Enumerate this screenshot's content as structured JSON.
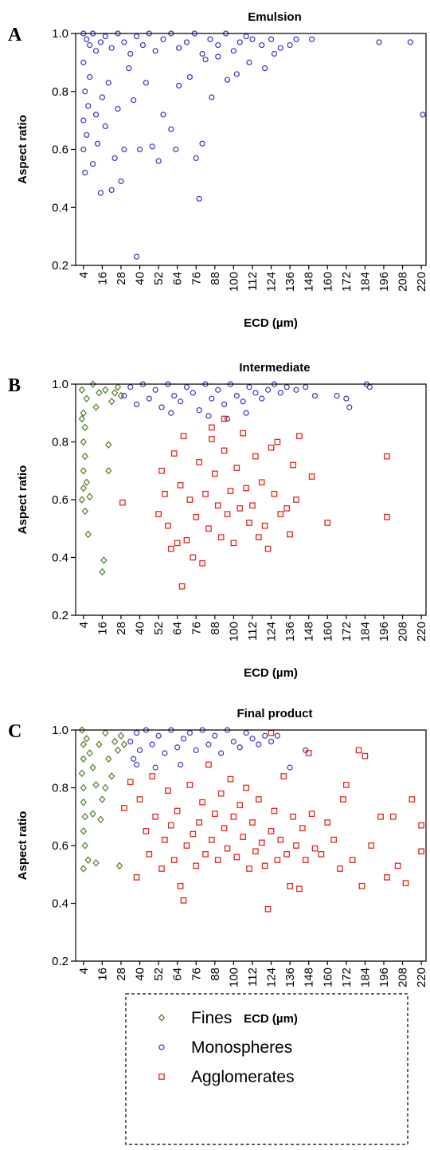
{
  "chart_data": [
    {
      "type": "scatter",
      "panel_label": "A",
      "title": "Emulsion",
      "x_label": "ECD (µm)",
      "y_label": "Aspect ratio",
      "xlim": [
        -1,
        223
      ],
      "ylim": [
        0.2,
        1.0
      ],
      "xticks": [
        4,
        16,
        28,
        40,
        52,
        64,
        76,
        88,
        100,
        112,
        124,
        136,
        148,
        160,
        172,
        184,
        196,
        208,
        220
      ],
      "yticks": [
        0.2,
        0.4,
        0.6,
        0.8,
        {
          "value": 1,
          "label": "1.0"
        }
      ],
      "series": [
        {
          "name": "Monospheres",
          "color": "#3333c4",
          "marker": "circle",
          "x": [
            4,
            6,
            8,
            10,
            12,
            15,
            18,
            22,
            26,
            30,
            34,
            38,
            42,
            46,
            50,
            55,
            60,
            65,
            70,
            75,
            80,
            85,
            90,
            95,
            100,
            104,
            108,
            112,
            118,
            124,
            130,
            136,
            140,
            150,
            193,
            213,
            221,
            4,
            4,
            5,
            4,
            5,
            6,
            7,
            8,
            10,
            12,
            13,
            15,
            16,
            18,
            20,
            22,
            24,
            26,
            28,
            30,
            33,
            36,
            38,
            40,
            44,
            48,
            52,
            55,
            60,
            63,
            65,
            72,
            76,
            78,
            80,
            82,
            86,
            90,
            96,
            102,
            110,
            120,
            126
          ],
          "values": [
            1.0,
            0.98,
            0.96,
            1.0,
            0.94,
            0.97,
            0.99,
            0.95,
            1.0,
            0.97,
            0.93,
            0.99,
            0.96,
            1.0,
            0.94,
            0.98,
            1.0,
            0.95,
            0.97,
            1.0,
            0.93,
            0.98,
            0.96,
            1.0,
            0.94,
            0.97,
            0.99,
            0.98,
            0.96,
            0.98,
            0.95,
            0.96,
            0.98,
            0.98,
            0.97,
            0.97,
            0.72,
            0.6,
            0.7,
            0.8,
            0.9,
            0.52,
            0.65,
            0.75,
            0.85,
            0.55,
            0.72,
            0.62,
            0.45,
            0.78,
            0.68,
            0.83,
            0.46,
            0.57,
            0.74,
            0.49,
            0.6,
            0.88,
            0.77,
            0.23,
            0.6,
            0.83,
            0.61,
            0.56,
            0.72,
            0.67,
            0.6,
            0.82,
            0.85,
            0.57,
            0.43,
            0.62,
            0.91,
            0.78,
            0.92,
            0.84,
            0.86,
            0.9,
            0.88,
            0.93
          ]
        }
      ]
    },
    {
      "type": "scatter",
      "panel_label": "B",
      "title": "Intermediate",
      "x_label": "ECD (µm)",
      "y_label": "Aspect ratio",
      "xlim": [
        -1,
        223
      ],
      "ylim": [
        0.2,
        1.0
      ],
      "xticks": [
        4,
        16,
        28,
        40,
        52,
        64,
        76,
        88,
        100,
        112,
        124,
        136,
        148,
        160,
        172,
        184,
        196,
        208,
        220
      ],
      "yticks": [
        0.2,
        0.4,
        0.6,
        0.8,
        {
          "value": 1,
          "label": "1.0"
        }
      ],
      "series": [
        {
          "name": "Fines",
          "color": "#4f7f2f",
          "marker": "diamond",
          "x": [
            3,
            4,
            4,
            4,
            3,
            5,
            5,
            6,
            6,
            7,
            8,
            10,
            12,
            14,
            16,
            17,
            18,
            20,
            20,
            22,
            24,
            26,
            28,
            4,
            5,
            3
          ],
          "values": [
            0.98,
            0.9,
            0.8,
            0.7,
            0.6,
            0.85,
            0.75,
            0.95,
            0.66,
            0.48,
            0.61,
            1.0,
            0.92,
            0.97,
            0.35,
            0.39,
            0.98,
            0.79,
            0.7,
            0.94,
            0.97,
            0.99,
            0.96,
            0.64,
            0.56,
            0.88
          ]
        },
        {
          "name": "Monospheres",
          "color": "#3333c4",
          "marker": "circle",
          "x": [
            30,
            34,
            38,
            42,
            46,
            50,
            54,
            58,
            62,
            66,
            70,
            74,
            78,
            82,
            86,
            90,
            94,
            98,
            102,
            106,
            110,
            114,
            118,
            122,
            126,
            130,
            134,
            140,
            146,
            152,
            166,
            172,
            174,
            185,
            187,
            60,
            84,
            96,
            108
          ],
          "values": [
            0.96,
            0.99,
            0.93,
            1.0,
            0.95,
            0.98,
            0.92,
            1.0,
            0.96,
            0.94,
            0.99,
            0.97,
            0.91,
            1.0,
            0.95,
            0.98,
            0.93,
            1.0,
            0.96,
            0.94,
            0.99,
            0.97,
            0.95,
            0.98,
            1.0,
            0.97,
            0.99,
            0.98,
            0.99,
            0.96,
            0.96,
            0.95,
            0.92,
            1.0,
            0.99,
            0.9,
            0.89,
            0.88,
            0.9
          ]
        },
        {
          "name": "Agglomerates",
          "color": "#dd2a22",
          "marker": "square",
          "x": [
            29,
            52,
            54,
            56,
            58,
            60,
            62,
            64,
            66,
            67,
            68,
            70,
            72,
            74,
            76,
            78,
            80,
            82,
            84,
            86,
            88,
            90,
            92,
            94,
            96,
            98,
            100,
            102,
            104,
            106,
            108,
            110,
            112,
            114,
            116,
            118,
            120,
            122,
            124,
            126,
            128,
            130,
            134,
            136,
            138,
            140,
            142,
            150,
            160,
            198,
            198,
            86,
            94
          ],
          "values": [
            0.59,
            0.55,
            0.7,
            0.62,
            0.51,
            0.43,
            0.76,
            0.45,
            0.65,
            0.3,
            0.82,
            0.46,
            0.6,
            0.4,
            0.54,
            0.73,
            0.38,
            0.62,
            0.5,
            0.81,
            0.69,
            0.58,
            0.47,
            0.77,
            0.55,
            0.63,
            0.45,
            0.71,
            0.57,
            0.83,
            0.64,
            0.52,
            0.58,
            0.75,
            0.47,
            0.66,
            0.51,
            0.43,
            0.78,
            0.62,
            0.8,
            0.55,
            0.57,
            0.48,
            0.72,
            0.6,
            0.82,
            0.68,
            0.52,
            0.75,
            0.54,
            0.85,
            0.88
          ]
        }
      ]
    },
    {
      "type": "scatter",
      "panel_label": "C",
      "title": "Final product",
      "x_label": "ECD (µm)",
      "y_label": "Aspect ratio",
      "xlim": [
        -1,
        223
      ],
      "ylim": [
        0.2,
        1.0
      ],
      "xticks": [
        4,
        16,
        28,
        40,
        52,
        64,
        76,
        88,
        100,
        112,
        124,
        136,
        148,
        160,
        172,
        184,
        196,
        208,
        220
      ],
      "yticks": [
        0.2,
        0.4,
        0.6,
        0.8,
        {
          "value": 1,
          "label": "1.0"
        }
      ],
      "series": [
        {
          "name": "Fines",
          "color": "#4f7f2f",
          "marker": "diamond",
          "x": [
            3,
            4,
            4,
            3,
            4,
            4,
            5,
            4,
            5,
            4,
            6,
            7,
            8,
            10,
            12,
            12,
            14,
            15,
            16,
            18,
            20,
            22,
            24,
            26,
            27,
            28,
            30,
            10,
            18
          ],
          "values": [
            1.0,
            0.95,
            0.9,
            0.85,
            0.8,
            0.75,
            0.7,
            0.65,
            0.6,
            0.52,
            0.97,
            0.55,
            0.92,
            0.87,
            0.81,
            0.54,
            0.95,
            0.69,
            0.76,
            0.99,
            0.9,
            0.84,
            0.96,
            0.93,
            0.53,
            0.98,
            0.95,
            0.71,
            0.8
          ]
        },
        {
          "name": "Monospheres",
          "color": "#3333c4",
          "marker": "circle",
          "x": [
            34,
            36,
            38,
            40,
            44,
            48,
            52,
            56,
            60,
            64,
            68,
            72,
            76,
            80,
            84,
            88,
            92,
            96,
            100,
            104,
            108,
            112,
            116,
            120,
            124,
            128,
            136,
            146,
            50,
            66,
            38
          ],
          "values": [
            0.96,
            0.9,
            0.99,
            0.93,
            1.0,
            0.95,
            0.98,
            0.92,
            1.0,
            0.94,
            0.97,
            0.99,
            0.93,
            1.0,
            0.95,
            0.98,
            0.92,
            1.0,
            0.96,
            0.94,
            0.99,
            0.97,
            0.95,
            0.98,
            0.96,
            0.98,
            0.87,
            0.93,
            0.87,
            0.88,
            0.88
          ]
        },
        {
          "name": "Agglomerates",
          "color": "#dd2a22",
          "marker": "square",
          "x": [
            30,
            34,
            38,
            40,
            44,
            46,
            48,
            50,
            54,
            56,
            58,
            60,
            62,
            64,
            66,
            68,
            70,
            72,
            74,
            76,
            78,
            80,
            82,
            84,
            86,
            88,
            90,
            92,
            94,
            96,
            98,
            100,
            102,
            104,
            106,
            108,
            110,
            112,
            114,
            116,
            118,
            120,
            122,
            124,
            126,
            128,
            130,
            132,
            134,
            136,
            138,
            140,
            142,
            144,
            146,
            148,
            150,
            152,
            156,
            160,
            164,
            168,
            170,
            172,
            176,
            180,
            182,
            184,
            188,
            194,
            198,
            202,
            205,
            210,
            214,
            220,
            220,
            124
          ],
          "values": [
            0.73,
            0.82,
            0.49,
            0.76,
            0.65,
            0.57,
            0.84,
            0.7,
            0.52,
            0.62,
            0.79,
            0.67,
            0.55,
            0.72,
            0.46,
            0.41,
            0.6,
            0.81,
            0.64,
            0.53,
            0.68,
            0.75,
            0.57,
            0.88,
            0.62,
            0.71,
            0.55,
            0.78,
            0.66,
            0.59,
            0.83,
            0.7,
            0.56,
            0.74,
            0.63,
            0.8,
            0.52,
            0.68,
            0.58,
            0.76,
            0.61,
            0.53,
            0.38,
            0.65,
            0.72,
            0.55,
            0.62,
            0.84,
            0.57,
            0.46,
            0.7,
            0.6,
            0.45,
            0.66,
            0.55,
            0.92,
            0.71,
            0.59,
            0.57,
            0.68,
            0.62,
            0.52,
            0.76,
            0.81,
            0.55,
            0.93,
            0.46,
            0.91,
            0.6,
            0.7,
            0.49,
            0.7,
            0.53,
            0.47,
            0.76,
            0.67,
            0.58,
            0.99
          ]
        }
      ]
    }
  ]
}
